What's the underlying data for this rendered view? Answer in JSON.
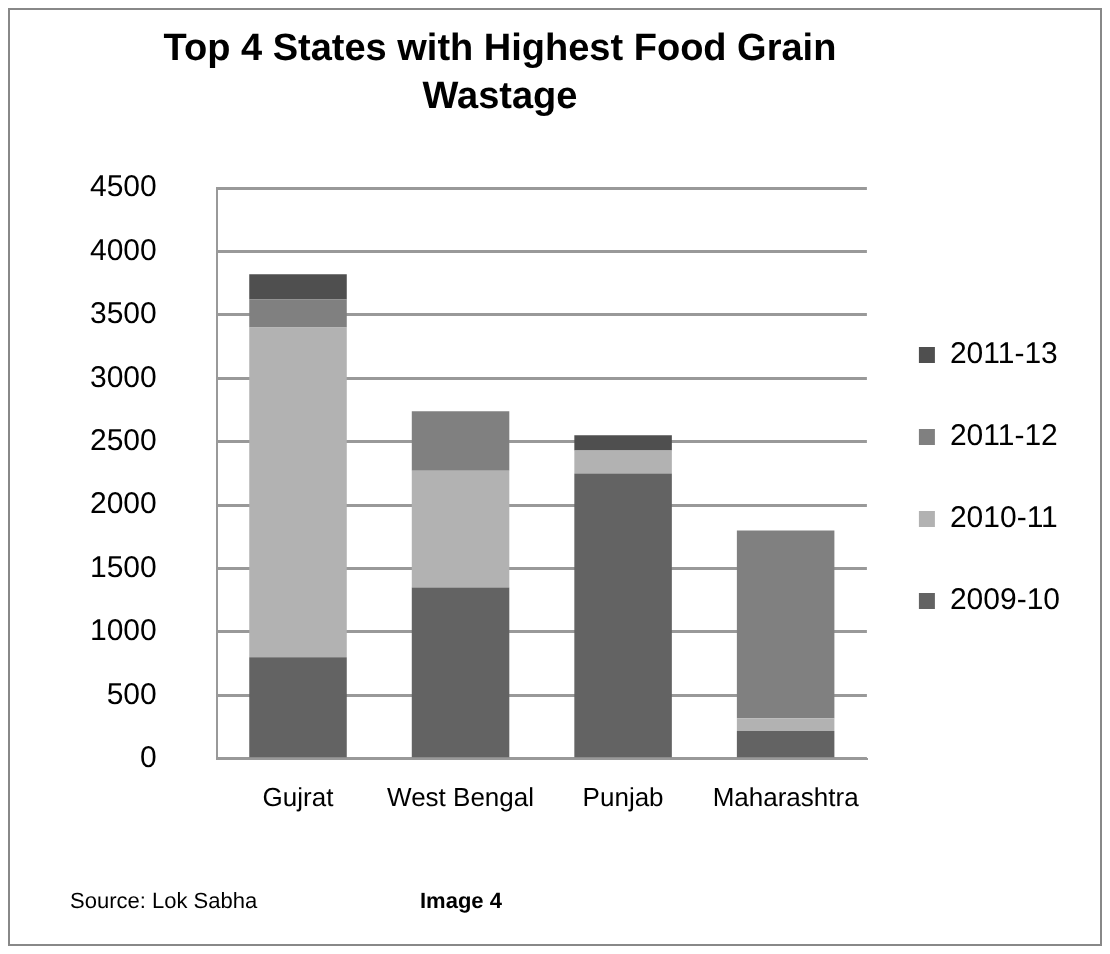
{
  "chart_data": {
    "type": "bar",
    "title": "Top 4 States with Highest Food Grain Wastage",
    "categories": [
      "Gujrat",
      "West Bengal",
      "Punjab",
      "Maharashtra"
    ],
    "series": [
      {
        "name": "2009-10",
        "color": "#636363",
        "values": [
          800,
          1350,
          2250,
          220
        ]
      },
      {
        "name": "2010-11",
        "color": "#b2b2b2",
        "values": [
          2600,
          920,
          180,
          100
        ]
      },
      {
        "name": "2011-12",
        "color": "#808080",
        "values": [
          220,
          470,
          0,
          1480
        ]
      },
      {
        "name": "2011-13",
        "color": "#4f4f4f",
        "values": [
          200,
          0,
          120,
          0
        ]
      }
    ],
    "stacked": true,
    "ylim": [
      0,
      4500
    ],
    "yticks": [
      0,
      500,
      1000,
      1500,
      2000,
      2500,
      3000,
      3500,
      4000,
      4500
    ],
    "grid": "y",
    "legend": "right",
    "annotations": [
      "Source: Lok Sabha",
      "Image 4"
    ]
  }
}
